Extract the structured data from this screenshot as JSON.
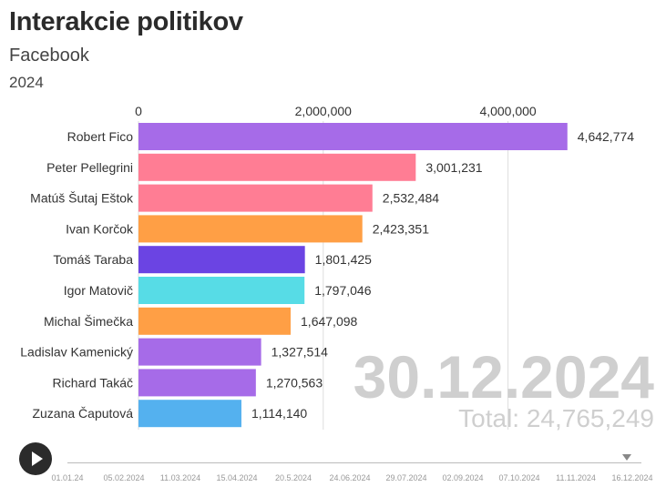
{
  "header": {
    "title": "Interakcie politikov",
    "subtitle": "Facebook",
    "year": "2024"
  },
  "overlay": {
    "date": "30.12.2024",
    "total": "Total: 24,765,249"
  },
  "timeline": {
    "labels": [
      "01.01.24",
      "05.02.2024",
      "11.03.2024",
      "15.04.2024",
      "20.5.2024",
      "24.06.2024",
      "29.07.2024",
      "02.09.2024",
      "07.10.2024",
      "11.11.2024",
      "16.12.2024"
    ],
    "position": 0.99
  },
  "colors": {
    "purple": "#a66be8",
    "pink": "#ff7d94",
    "orange": "#ff9f45",
    "indigo": "#6b44e3",
    "cyan": "#57dce6",
    "blue": "#54b1ef"
  },
  "chart_data": {
    "type": "bar",
    "orientation": "horizontal",
    "xlim": [
      0,
      5000000
    ],
    "x_ticks": [
      0,
      2000000,
      4000000
    ],
    "x_tick_labels": [
      "0",
      "2,000,000",
      "4,000,000"
    ],
    "categories": [
      "Robert Fico",
      "Peter Pellegrini",
      "Matúš Šutaj Eštok",
      "Ivan Korčok",
      "Tomáš Taraba",
      "Igor Matovič",
      "Michal Šimečka",
      "Ladislav Kamenický",
      "Richard Takáč",
      "Zuzana Čaputová"
    ],
    "values": [
      4642774,
      3001231,
      2532484,
      2423351,
      1801425,
      1797046,
      1647098,
      1327514,
      1270563,
      1114140
    ],
    "value_labels": [
      "4,642,774",
      "3,001,231",
      "2,532,484",
      "2,423,351",
      "1,801,425",
      "1,797,046",
      "1,647,098",
      "1,327,514",
      "1,270,563",
      "1,114,140"
    ],
    "bar_colors": [
      "#a66be8",
      "#ff7d94",
      "#ff7d94",
      "#ff9f45",
      "#6b44e3",
      "#57dce6",
      "#ff9f45",
      "#a66be8",
      "#a66be8",
      "#54b1ef"
    ],
    "grid": true,
    "title": "Interakcie politikov",
    "subtitle": "Facebook"
  }
}
